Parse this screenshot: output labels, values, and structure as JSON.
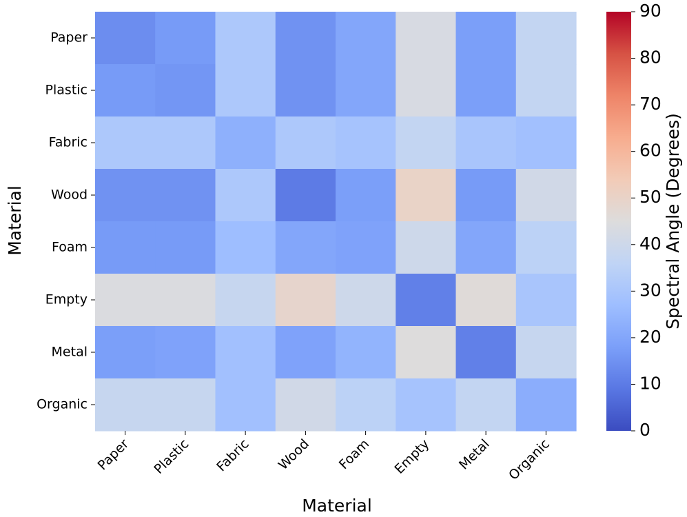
{
  "chart_data": {
    "type": "heatmap",
    "title": "",
    "xlabel": "Material",
    "ylabel": "Material",
    "x_categories": [
      "Paper",
      "Plastic",
      "Fabric",
      "Wood",
      "Foam",
      "Empty",
      "Metal",
      "Organic"
    ],
    "y_categories": [
      "Paper",
      "Plastic",
      "Fabric",
      "Wood",
      "Foam",
      "Empty",
      "Metal",
      "Organic"
    ],
    "values": [
      [
        14,
        17,
        31,
        15,
        20,
        43,
        18,
        37
      ],
      [
        17,
        16,
        31,
        15,
        20,
        43,
        18,
        37
      ],
      [
        31,
        31,
        23,
        31,
        29,
        37,
        30,
        28
      ],
      [
        15,
        15,
        31,
        10,
        18,
        50,
        17,
        41
      ],
      [
        17,
        17,
        27,
        20,
        19,
        40,
        20,
        35
      ],
      [
        44,
        44,
        38,
        49,
        40,
        11,
        46,
        30
      ],
      [
        18,
        19,
        28,
        19,
        24,
        45,
        11,
        38
      ],
      [
        38,
        38,
        28,
        41,
        35,
        29,
        37,
        22
      ]
    ],
    "colorbar": {
      "label": "Spectral Angle (Degrees)",
      "min": 0,
      "max": 90,
      "ticks": [
        0,
        10,
        20,
        30,
        40,
        50,
        60,
        70,
        80,
        90
      ],
      "colormap": "coolwarm",
      "stops": [
        "#3b4cc0",
        "#5977e3",
        "#7b9ff9",
        "#9ebeff",
        "#c0d4f5",
        "#dddcdc",
        "#f2cbb7",
        "#f7ac8e",
        "#ee8468",
        "#d65244",
        "#b40426"
      ]
    }
  }
}
